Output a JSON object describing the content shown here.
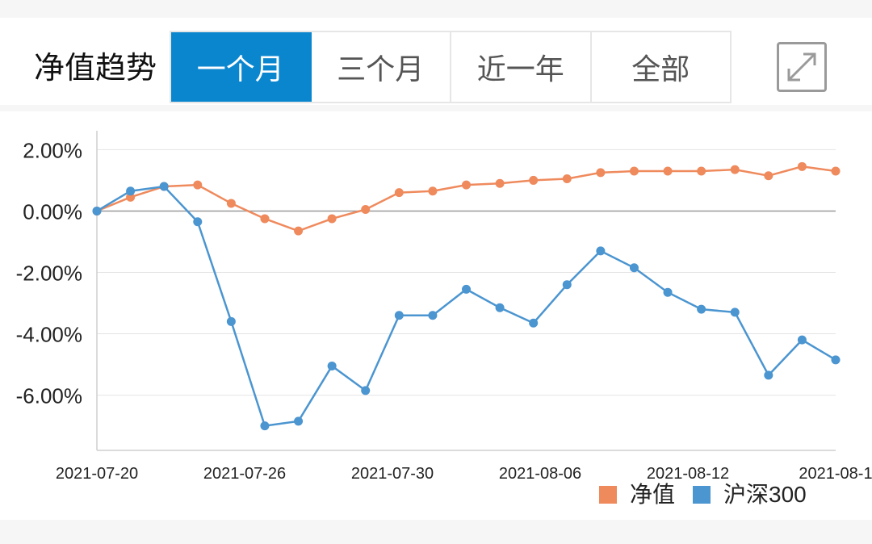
{
  "header": {
    "title": "净值趋势",
    "tabs": [
      {
        "label": "一个月",
        "active": true
      },
      {
        "label": "三个月",
        "active": false
      },
      {
        "label": "近一年",
        "active": false
      },
      {
        "label": "全部",
        "active": false
      }
    ],
    "expand_icon": "expand-arrows-icon"
  },
  "colors": {
    "accent": "#0a86cf",
    "series_nav": "#ef8a5d",
    "series_index": "#4b95d0"
  },
  "chart_data": {
    "type": "line",
    "x_tick_labels": [
      "2021-07-20",
      "2021-07-26",
      "2021-07-30",
      "2021-08-06",
      "2021-08-12",
      "2021-08-1"
    ],
    "y_tick_labels": [
      "2.00%",
      "0.00%",
      "-2.00%",
      "-4.00%",
      "-6.00%"
    ],
    "y_ticks": [
      2,
      0,
      -2,
      -4,
      -6
    ],
    "ylim": [
      -7.8,
      2.3
    ],
    "legend_position": "bottom-right",
    "grid": true,
    "series": [
      {
        "name": "净值",
        "color": "#ef8a5d",
        "values": [
          0,
          0.45,
          0.8,
          0.85,
          0.25,
          -0.25,
          -0.65,
          -0.25,
          0.05,
          0.6,
          0.65,
          0.85,
          0.9,
          1.0,
          1.05,
          1.25,
          1.3,
          1.3,
          1.3,
          1.35,
          1.15,
          1.45,
          1.3
        ]
      },
      {
        "name": "沪深300",
        "color": "#4b95d0",
        "values": [
          0,
          0.65,
          0.8,
          -0.35,
          -3.6,
          -7.0,
          -6.85,
          -5.05,
          -5.85,
          -3.4,
          -3.4,
          -2.55,
          -3.15,
          -3.65,
          -2.4,
          -1.3,
          -1.85,
          -2.65,
          -3.2,
          -3.3,
          -5.35,
          -4.2,
          -4.85
        ]
      }
    ]
  }
}
